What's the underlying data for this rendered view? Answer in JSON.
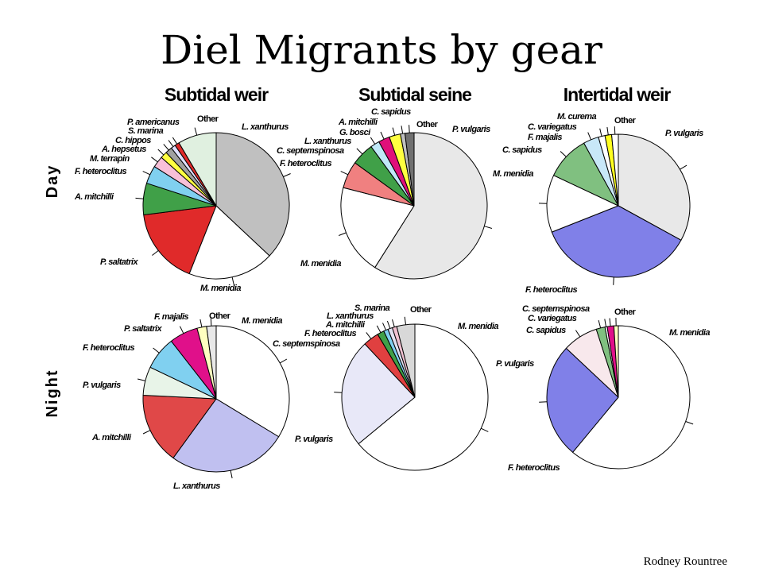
{
  "slide": {
    "title": "Diel Migrants by gear",
    "credit": "Rodney Rountree",
    "columns": [
      "Subtidal weir",
      "Subtidal seine",
      "Intertidal weir"
    ],
    "rows": [
      "Day",
      "Night"
    ]
  },
  "chart_data": [
    {
      "type": "pie",
      "title": "Subtidal weir",
      "row": "Day",
      "slices": [
        {
          "label": "L. xanthurus",
          "value": 37.0,
          "color": "#c0c0c0"
        },
        {
          "label": "M. menidia",
          "value": 19.0,
          "color": "#ffffff"
        },
        {
          "label": "P. saltatrix",
          "value": 17.0,
          "color": "#e02a2a"
        },
        {
          "label": "A. mitchilli",
          "value": 7.0,
          "color": "#40a048"
        },
        {
          "label": "F. heteroclitus",
          "value": 4.0,
          "color": "#80d0f0"
        },
        {
          "label": "M. terrapin",
          "value": 2.5,
          "color": "#f8c0d8"
        },
        {
          "label": "A. hepsetus",
          "value": 1.5,
          "color": "#ffff40"
        },
        {
          "label": "C. hippos",
          "value": 1.5,
          "color": "#a0a0a0"
        },
        {
          "label": "S. marina",
          "value": 1.0,
          "color": "#e0e0ff"
        },
        {
          "label": "P. americanus",
          "value": 1.0,
          "color": "#e02a2a"
        },
        {
          "label": "Other",
          "value": 8.5,
          "color": "#e0f0e0"
        }
      ]
    },
    {
      "type": "pie",
      "title": "Subtidal seine",
      "row": "Day",
      "slices": [
        {
          "label": "P. vulgaris",
          "value": 59.0,
          "color": "#e8e8e8"
        },
        {
          "label": "M. menidia",
          "value": 20.0,
          "color": "#ffffff"
        },
        {
          "label": "F. heteroclitus",
          "value": 6.0,
          "color": "#f08080"
        },
        {
          "label": "C. septemspinosa",
          "value": 5.0,
          "color": "#40a048"
        },
        {
          "label": "L. xanthurus",
          "value": 2.0,
          "color": "#c0e8f8"
        },
        {
          "label": "G. bosci",
          "value": 2.5,
          "color": "#e0107a"
        },
        {
          "label": "A. mitchilli",
          "value": 2.5,
          "color": "#ffff40"
        },
        {
          "label": "C. sapidus",
          "value": 1.0,
          "color": "#c0c0c0"
        },
        {
          "label": "Other",
          "value": 2.0,
          "color": "#707070"
        }
      ]
    },
    {
      "type": "pie",
      "title": "Intertidal weir",
      "row": "Day",
      "slices": [
        {
          "label": "P. vulgaris",
          "value": 33.0,
          "color": "#e8e8e8"
        },
        {
          "label": "F. heteroclitus",
          "value": 36.0,
          "color": "#8080e8"
        },
        {
          "label": "M. menidia",
          "value": 13.0,
          "color": "#ffffff"
        },
        {
          "label": "C. sapidus",
          "value": 10.0,
          "color": "#80c080"
        },
        {
          "label": "F. majalis",
          "value": 3.5,
          "color": "#c8e8f8"
        },
        {
          "label": "C. variegatus",
          "value": 1.5,
          "color": "#ffffff"
        },
        {
          "label": "M. curema",
          "value": 1.5,
          "color": "#ffff20"
        },
        {
          "label": "Other",
          "value": 1.5,
          "color": "#ffffff"
        }
      ]
    },
    {
      "type": "pie",
      "title": "Subtidal weir",
      "row": "Night",
      "slices": [
        {
          "label": "M. menidia",
          "value": 32.0,
          "color": "#ffffff"
        },
        {
          "label": "L. xanthurus",
          "value": 25.0,
          "color": "#c0c0f0"
        },
        {
          "label": "A. mitchilli",
          "value": 15.0,
          "color": "#e04848"
        },
        {
          "label": "P. vulgaris",
          "value": 6.0,
          "color": "#e8f4e8"
        },
        {
          "label": "F. heteroclitus",
          "value": 7.0,
          "color": "#80d0f0"
        },
        {
          "label": "P. saltatrix",
          "value": 6.0,
          "color": "#e0108a"
        },
        {
          "label": "F. majalis",
          "value": 2.0,
          "color": "#ffffc0"
        },
        {
          "label": "Other",
          "value": 2.0,
          "color": "#e8e8e8"
        }
      ]
    },
    {
      "type": "pie",
      "title": "Subtidal seine",
      "row": "Night",
      "slices": [
        {
          "label": "M. menidia",
          "value": 64.0,
          "color": "#ffffff"
        },
        {
          "label": "P. vulgaris",
          "value": 24.0,
          "color": "#e8e8f8"
        },
        {
          "label": "C. septemspinosa",
          "value": 3.5,
          "color": "#e04040"
        },
        {
          "label": "F. heteroclitus",
          "value": 1.5,
          "color": "#40a048"
        },
        {
          "label": "A. mitchilli",
          "value": 1.0,
          "color": "#80d0f0"
        },
        {
          "label": "L. xanthurus",
          "value": 1.0,
          "color": "#e0e0f0"
        },
        {
          "label": "S. marina",
          "value": 1.0,
          "color": "#f0c0d0"
        },
        {
          "label": "Other",
          "value": 4.0,
          "color": "#d8d8d8"
        }
      ]
    },
    {
      "type": "pie",
      "title": "Intertidal weir",
      "row": "Night",
      "slices": [
        {
          "label": "M. menidia",
          "value": 61.0,
          "color": "#ffffff"
        },
        {
          "label": "F. heteroclitus",
          "value": 26.0,
          "color": "#8080e8"
        },
        {
          "label": "P. vulgaris",
          "value": 8.0,
          "color": "#f8e8ec"
        },
        {
          "label": "C. sapidus",
          "value": 2.0,
          "color": "#80c080"
        },
        {
          "label": "C. variegatus",
          "value": 0.5,
          "color": "#ffffff"
        },
        {
          "label": "C. septemspinosa",
          "value": 1.5,
          "color": "#e0108a"
        },
        {
          "label": "Other",
          "value": 1.0,
          "color": "#ffffc0"
        }
      ]
    }
  ]
}
